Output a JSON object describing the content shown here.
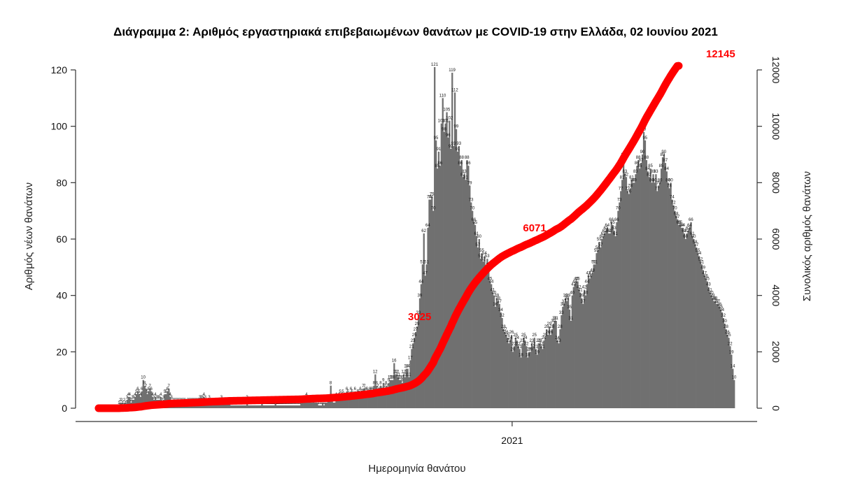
{
  "chart_data": {
    "type": "bar",
    "title": "Διάγραμμα 2: Αριθμός εργαστηριακά επιβεβαιωμένων θανάτων με COVID-19 στην Ελλάδα, 02 Ιουνίου 2021",
    "xlabel": "Ημερομηνία θανάτου",
    "ylabel": "Αριθμός νέων θανάτων",
    "y2label": "Συνολικός αριθμός θανάτων",
    "ylim": [
      0,
      120
    ],
    "y2lim": [
      0,
      12000
    ],
    "yticks": [
      0,
      20,
      40,
      60,
      80,
      100,
      120
    ],
    "y2ticks": [
      0,
      2000,
      4000,
      6000,
      8000,
      10000,
      12000
    ],
    "xticks": [
      {
        "label": "2021",
        "day_index": 307
      }
    ],
    "bar_color": "#707070",
    "line_color": "#ff0000",
    "grid": false,
    "series": [
      {
        "name": "",
        "type": "bar",
        "values": [
          0,
          0,
          0,
          0,
          0,
          0,
          0,
          0,
          0,
          0,
          0,
          0,
          0,
          0,
          0,
          1,
          2,
          2,
          1,
          2,
          1,
          3,
          4,
          4,
          2,
          3,
          3,
          4,
          5,
          6,
          5,
          4,
          6,
          10,
          8,
          7,
          5,
          6,
          7,
          6,
          4,
          3,
          4,
          3,
          3,
          3,
          4,
          2,
          3,
          5,
          5,
          6,
          7,
          4,
          3,
          2,
          2,
          2,
          2,
          2,
          2,
          2,
          2,
          2,
          2,
          1,
          2,
          2,
          2,
          2,
          2,
          2,
          2,
          2,
          2,
          3,
          3,
          3,
          4,
          3,
          2,
          2,
          3,
          2,
          2,
          2,
          2,
          2,
          2,
          2,
          2,
          3,
          2,
          2,
          2,
          2,
          2,
          2,
          1,
          1,
          1,
          1,
          1,
          1,
          1,
          1,
          1,
          1,
          1,
          1,
          3,
          1,
          1,
          1,
          1,
          1,
          1,
          1,
          1,
          1,
          1,
          2,
          1,
          1,
          1,
          1,
          1,
          1,
          1,
          1,
          1,
          2,
          1,
          1,
          1,
          1,
          1,
          1,
          1,
          1,
          1,
          1,
          1,
          1,
          1,
          1,
          1,
          1,
          1,
          1,
          2,
          2,
          3,
          3,
          4,
          2,
          2,
          2,
          2,
          3,
          2,
          2,
          2,
          1,
          1,
          1,
          2,
          1,
          2,
          2,
          3,
          3,
          8,
          3,
          2,
          2,
          4,
          3,
          4,
          5,
          4,
          5,
          4,
          4,
          6,
          5,
          4,
          6,
          5,
          4,
          6,
          4,
          5,
          5,
          6,
          5,
          7,
          7,
          6,
          6,
          5,
          6,
          6,
          6,
          8,
          12,
          8,
          7,
          6,
          8,
          6,
          9,
          7,
          8,
          7,
          9,
          10,
          10,
          10,
          16,
          12,
          12,
          11,
          10,
          10,
          9,
          12,
          11,
          14,
          14,
          11,
          17,
          21,
          23,
          25,
          27,
          29,
          33,
          39,
          44,
          51,
          62,
          47,
          51,
          64,
          74,
          74,
          75,
          70,
          121,
          95,
          85,
          91,
          86,
          101,
          110,
          98,
          101,
          105,
          96,
          102,
          92,
          119,
          93,
          112,
          99,
          91,
          93,
          86,
          88,
          82,
          83,
          81,
          88,
          86,
          79,
          73,
          70,
          66,
          65,
          61,
          57,
          60,
          53,
          55,
          52,
          54,
          49,
          53,
          50,
          45,
          44,
          41,
          40,
          36,
          39,
          38,
          37,
          34,
          32,
          28,
          27,
          26,
          25,
          23,
          24,
          26,
          20,
          22,
          25,
          24,
          22,
          21,
          18,
          23,
          25,
          24,
          22,
          18,
          20,
          20,
          23,
          22,
          25,
          21,
          19,
          23,
          23,
          22,
          21,
          24,
          25,
          28,
          26,
          29,
          26,
          28,
          30,
          31,
          31,
          24,
          23,
          28,
          33,
          36,
          37,
          39,
          38,
          39,
          35,
          31,
          40,
          43,
          44,
          45,
          45,
          42,
          41,
          39,
          37,
          42,
          40,
          44,
          47,
          46,
          47,
          48,
          51,
          51,
          55,
          56,
          59,
          57,
          60,
          61,
          62,
          63,
          64,
          62,
          62,
          66,
          65,
          63,
          61,
          66,
          70,
          73,
          77,
          81,
          89,
          83,
          82,
          77,
          76,
          78,
          81,
          80,
          80,
          83,
          86,
          88,
          85,
          87,
          90,
          98,
          95,
          88,
          84,
          82,
          85,
          80,
          83,
          80,
          83,
          77,
          79,
          80,
          85,
          89,
          90,
          87,
          84,
          80,
          78,
          80,
          74,
          72,
          70,
          68,
          67,
          65,
          65,
          64,
          64,
          62,
          60,
          62,
          63,
          64,
          66,
          61,
          60,
          58,
          57,
          55,
          54,
          52,
          51,
          49,
          47,
          46,
          45,
          43,
          41,
          40,
          39,
          38,
          38,
          37,
          37,
          36,
          35,
          34,
          32,
          30,
          28,
          26,
          25,
          22,
          19,
          14,
          10
        ]
      },
      {
        "name": "",
        "type": "line",
        "cumulative": true,
        "values": [
          0,
          0,
          0,
          0,
          0,
          0,
          0,
          0,
          0,
          0,
          0,
          0,
          0,
          0,
          0,
          1,
          3,
          5,
          6,
          8,
          9,
          12,
          16,
          20,
          22,
          25,
          28,
          32,
          37,
          43,
          48,
          52,
          58,
          68,
          76,
          83,
          88,
          94,
          101,
          107,
          111,
          114,
          118,
          121,
          124,
          127,
          131,
          133,
          136,
          141,
          146,
          152,
          159,
          163,
          166,
          168,
          170,
          172,
          174,
          176,
          178,
          180,
          182,
          184,
          186,
          187,
          189,
          191,
          193,
          195,
          197,
          199,
          201,
          203,
          205,
          208,
          211,
          214,
          218,
          221,
          223,
          225,
          228,
          230,
          232,
          234,
          236,
          238,
          240,
          242,
          244,
          247,
          249,
          251,
          253,
          255,
          257,
          259,
          260,
          261,
          262,
          263,
          264,
          265,
          266,
          267,
          268,
          269,
          270,
          271,
          274,
          275,
          276,
          277,
          278,
          279,
          280,
          281,
          282,
          283,
          284,
          286,
          287,
          288,
          289,
          290,
          291,
          292,
          293,
          294,
          295,
          297,
          298,
          299,
          300,
          301,
          302,
          303,
          304,
          305,
          306,
          307,
          308,
          309,
          310,
          311,
          312,
          313,
          314,
          315,
          317,
          319,
          322,
          325,
          329,
          331,
          333,
          335,
          337,
          340,
          342,
          344,
          346,
          347,
          348,
          349,
          351,
          352,
          354,
          356,
          359,
          362,
          370,
          373,
          375,
          377,
          381,
          384,
          388,
          393,
          397,
          402,
          406,
          410,
          416,
          421,
          425,
          431,
          436,
          440,
          446,
          450,
          455,
          460,
          466,
          471,
          478,
          485,
          491,
          497,
          502,
          508,
          514,
          520,
          528,
          540,
          548,
          555,
          561,
          569,
          575,
          584,
          591,
          599,
          606,
          615,
          625,
          635,
          645,
          661,
          673,
          685,
          696,
          706,
          716,
          725,
          737,
          748,
          762,
          776,
          787,
          804,
          825,
          848,
          873,
          900,
          929,
          962,
          1001,
          1045,
          1096,
          1158,
          1205,
          1256,
          1320,
          1394,
          1468,
          1543,
          1613,
          1734,
          1829,
          1914,
          2005,
          2091,
          2192,
          2302,
          2400,
          2501,
          2606,
          2702,
          2804,
          2896,
          3015,
          3108,
          3220,
          3319,
          3410,
          3503,
          3589,
          3677,
          3759,
          3842,
          3923,
          4011,
          4097,
          4176,
          4249,
          4319,
          4385,
          4450,
          4511,
          4568,
          4628,
          4681,
          4736,
          4788,
          4842,
          4891,
          4944,
          4994,
          5039,
          5083,
          5124,
          5164,
          5200,
          5239,
          5277,
          5314,
          5348,
          5380,
          5408,
          5435,
          5461,
          5486,
          5509,
          5533,
          5559,
          5579,
          5601,
          5626,
          5650,
          5672,
          5693,
          5711,
          5734,
          5759,
          5783,
          5805,
          5823,
          5843,
          5863,
          5886,
          5908,
          5933,
          5954,
          5973,
          5996,
          6019,
          6041,
          6062,
          6086,
          6111,
          6139,
          6165,
          6194,
          6220,
          6248,
          6278,
          6309,
          6340,
          6364,
          6387,
          6415,
          6448,
          6484,
          6521,
          6560,
          6598,
          6637,
          6672,
          6703,
          6743,
          6786,
          6830,
          6875,
          6920,
          6962,
          7003,
          7042,
          7079,
          7121,
          7161,
          7205,
          7252,
          7298,
          7345,
          7393,
          7444,
          7495,
          7550,
          7606,
          7665,
          7722,
          7782,
          7843,
          7905,
          7968,
          8032,
          8094,
          8156,
          8222,
          8287,
          8350,
          8411,
          8477,
          8547,
          8620,
          8697,
          8778,
          8867,
          8950,
          9032,
          9109,
          9185,
          9263,
          9344,
          9424,
          9504,
          9587,
          9673,
          9761,
          9846,
          9933,
          10023,
          10121,
          10216,
          10304,
          10388,
          10470,
          10555,
          10635,
          10718,
          10798,
          10881,
          10958,
          11037,
          11117,
          11202,
          11291,
          11381,
          11468,
          11552,
          11632,
          11710,
          11790,
          11864,
          11936,
          12006,
          12074,
          12141,
          12145
        ]
      }
    ],
    "annotations": [
      {
        "text": "3025",
        "day_index": 240,
        "value": 3025
      },
      {
        "text": "6071",
        "day_index": 336,
        "value": 6071
      },
      {
        "text": "12145",
        "day_index": 460,
        "value": 12145
      }
    ]
  }
}
